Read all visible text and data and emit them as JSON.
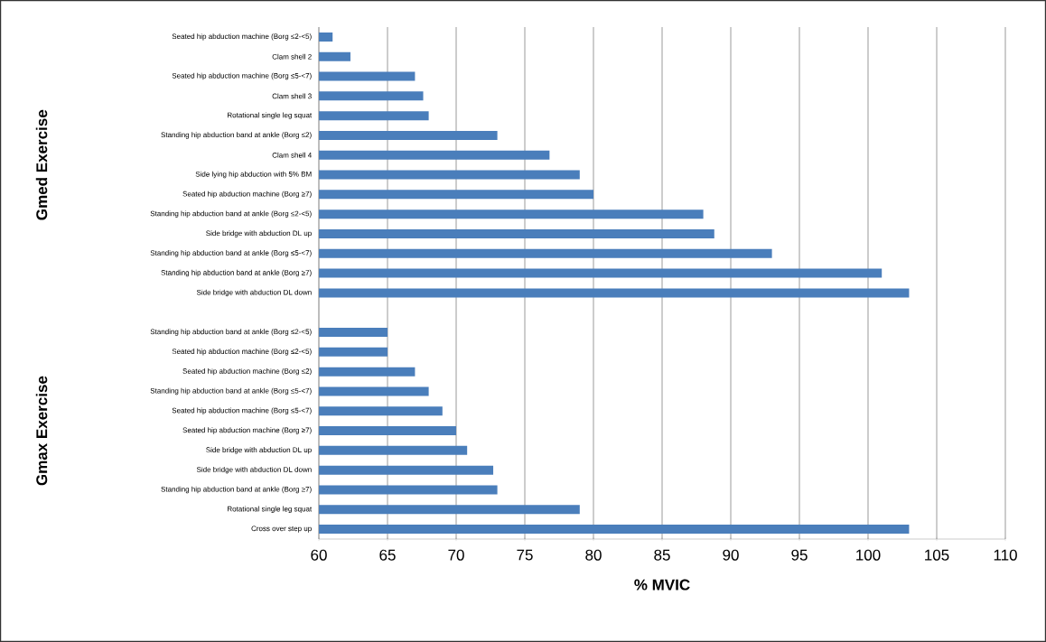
{
  "chart_data": {
    "type": "bar",
    "orientation": "horizontal",
    "categories": [
      "Seated hip abduction machine (Borg ≤2-<5)",
      "Clam shell 2",
      "Seated hip abduction machine (Borg ≤5-<7)",
      "Clam shell 3",
      "Rotational single leg squat",
      "Standing hip abduction band at ankle (Borg ≤2)",
      "Clam shell 4",
      "Side lying hip abduction with 5% BM",
      "Seated hip abduction machine (Borg ≥7)",
      "Standing hip abduction band at ankle (Borg ≤2-<5)",
      "Side bridge with abduction DL up",
      "Standing hip abduction band at ankle (Borg ≤5-<7)",
      "Standing hip abduction band at ankle (Borg ≥7)",
      "Side bridge with abduction DL down",
      null,
      "Standing hip abduction band at ankle (Borg ≤2-<5)",
      "Seated hip abduction machine (Borg ≤2-<5)",
      "Seated hip abduction machine (Borg ≤2)",
      "Standing hip abduction band at ankle (Borg ≤5-<7)",
      "Seated hip abduction machine (Borg ≤5-<7)",
      "Seated hip abduction machine (Borg ≥7)",
      "Side bridge with abduction DL up",
      "Side bridge with abduction DL down",
      "Standing hip abduction band at ankle (Borg ≥7)",
      "Rotational single leg squat",
      "Cross over step up"
    ],
    "values": [
      61,
      62.3,
      67,
      67.6,
      68,
      73,
      76.8,
      79,
      80,
      88,
      88.8,
      93,
      101,
      103,
      null,
      65,
      65,
      67,
      68,
      69,
      70,
      70.8,
      72.7,
      73,
      79,
      103
    ],
    "color": "#4a7ebb",
    "xlabel": "% MVIC",
    "xlim": [
      60,
      110
    ],
    "xticks": [
      60,
      65,
      70,
      75,
      80,
      85,
      90,
      95,
      100,
      105,
      110
    ],
    "grid": "x",
    "annotations": [
      "Gmed Exercise",
      "Gmax Exercise"
    ]
  }
}
